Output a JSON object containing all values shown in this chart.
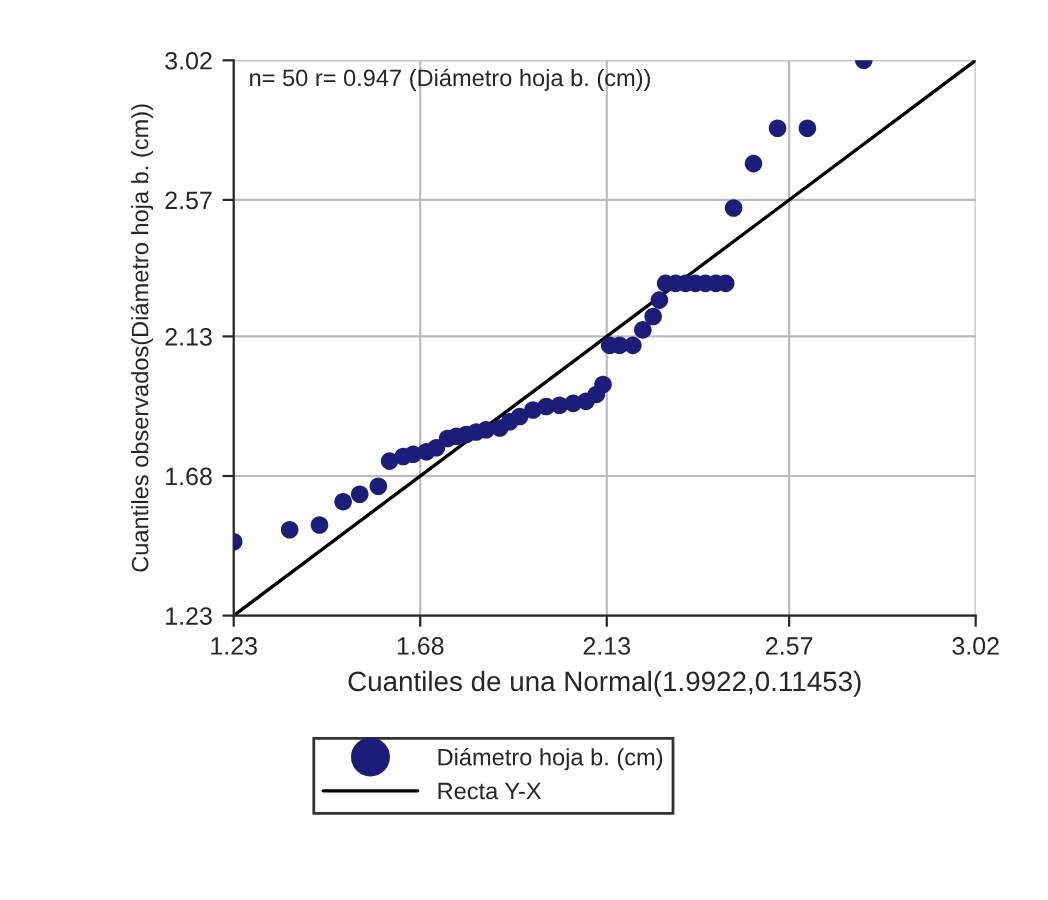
{
  "chart_data": {
    "type": "scatter",
    "xlabel": "Cuantiles de una Normal(1.9922,0.11453)",
    "ylabel": "Cuantiles observados(Diámetro hoja b. (cm))",
    "annotations": [
      "n= 50 r= 0.947 (Diámetro hoja b. (cm))"
    ],
    "series": [
      {
        "name": "Diámetro hoja b. (cm)",
        "color": "#1c1c7a",
        "marker": "circle",
        "x": [
          1.23,
          1.365,
          1.437,
          1.494,
          1.534,
          1.579,
          1.606,
          1.639,
          1.663,
          1.695,
          1.719,
          1.746,
          1.767,
          1.791,
          1.815,
          1.839,
          1.872,
          1.896,
          1.92,
          1.952,
          1.984,
          2.016,
          2.049,
          2.08,
          2.105,
          2.121,
          2.137,
          2.161,
          2.193,
          2.217,
          2.242,
          2.257,
          2.272,
          2.296,
          2.32,
          2.344,
          2.368,
          2.393,
          2.417,
          2.436,
          2.484,
          2.542,
          2.614,
          2.75
        ],
        "values": [
          1.468,
          1.507,
          1.522,
          1.597,
          1.621,
          1.647,
          1.728,
          1.743,
          1.75,
          1.758,
          1.771,
          1.801,
          1.808,
          1.814,
          1.822,
          1.829,
          1.835,
          1.855,
          1.872,
          1.893,
          1.904,
          1.908,
          1.914,
          1.921,
          1.943,
          1.975,
          2.101,
          2.101,
          2.101,
          2.151,
          2.194,
          2.247,
          2.301,
          2.301,
          2.301,
          2.301,
          2.301,
          2.301,
          2.301,
          2.544,
          2.687,
          2.801,
          2.801,
          3.02
        ]
      },
      {
        "name": "Recta Y-X",
        "type": "line",
        "color": "#000000",
        "line_style": "solid",
        "x": [
          1.23,
          3.02
        ],
        "values": [
          1.23,
          3.02
        ]
      }
    ],
    "xlim": [
      1.23,
      3.02
    ],
    "ylim": [
      1.23,
      3.02
    ],
    "xticks": [
      1.23,
      1.68,
      2.13,
      2.57,
      3.02
    ],
    "yticks": [
      1.23,
      1.68,
      2.13,
      2.57,
      3.02
    ],
    "grid": true,
    "legend": "bottom"
  }
}
